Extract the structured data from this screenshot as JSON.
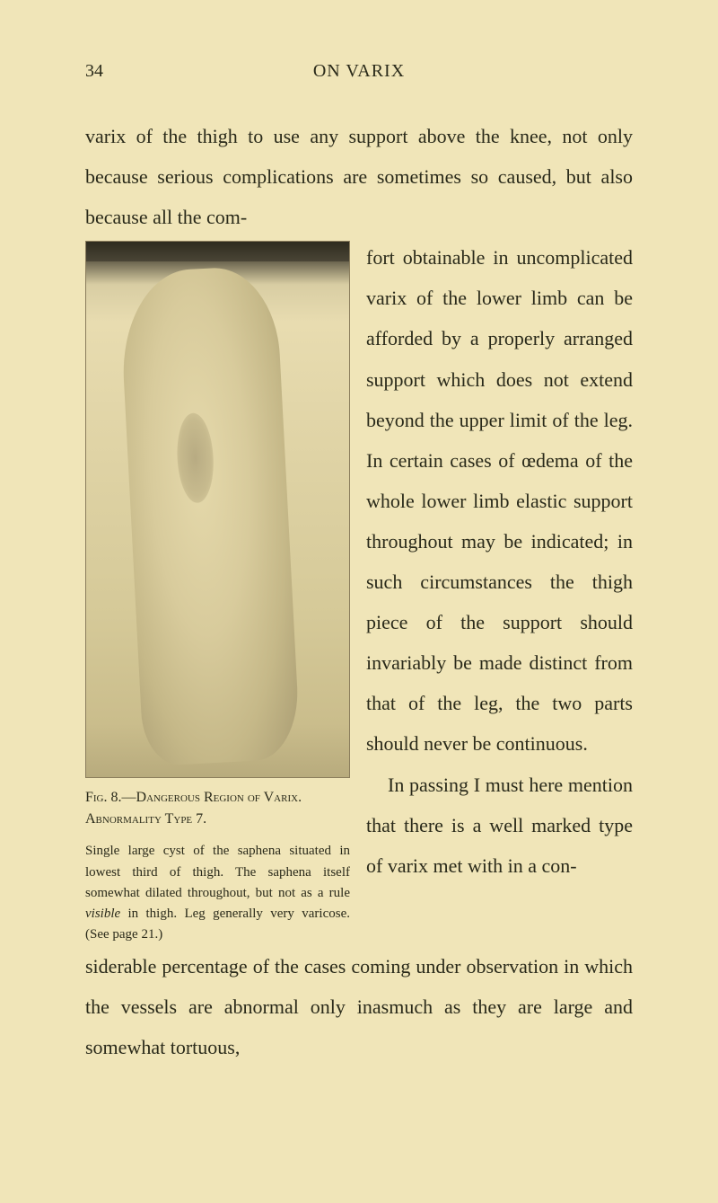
{
  "page": {
    "number": "34",
    "running_title": "ON VARIX"
  },
  "text": {
    "intro": "varix of the thigh to use any support above the knee, not only because serious complications are sometimes so caused, but also because all the com-",
    "right_column": "fort obtainable in uncomplicated varix of the lower limb can be afforded by a properly arranged support which does not extend beyond the upper limit of the leg. In certain cases of œdema of the whole lower limb elastic support throughout may be indicated; in such circumstances the thigh piece of the support should invariably be made distinct from that of the leg, the two parts should never be continuous.",
    "right_column_p2_lead": "In passing I must here mention that there is a well marked type of varix met with in a con-",
    "bottom": "siderable percentage of the cases coming under observation in which the vessels are abnormal only inasmuch as they are large and somewhat tortuous,"
  },
  "figure": {
    "label": "Fig. 8.—",
    "caption_title": "Dangerous Region of Varix. Abnormality Type 7.",
    "description_part1": "Single large cyst of the saphena situated in lowest third of thigh. The saphena itself somewhat dilated throughout, but not as a rule ",
    "description_italic": "visible",
    "description_part2": " in thigh. Leg generally very varicose. (See page 21.)"
  },
  "colors": {
    "page_bg": "#f0e5b8",
    "text_color": "#2a2a1a"
  }
}
